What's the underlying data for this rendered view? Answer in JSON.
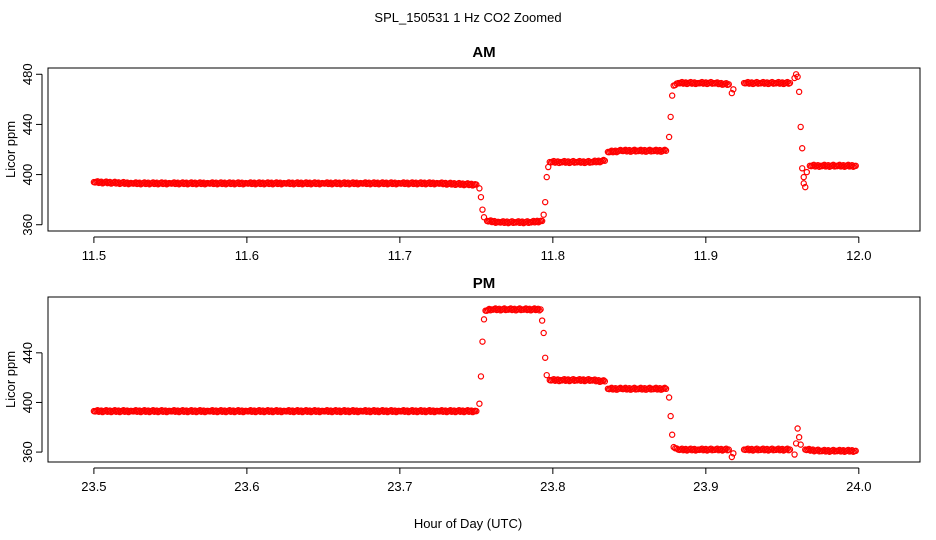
{
  "figure": {
    "title": "SPL_150531  1 Hz CO2 Zoomed",
    "xlabel": "Hour of Day (UTC)",
    "point_color": "#ff0000"
  },
  "chart_data": [
    {
      "type": "scatter",
      "title": "AM",
      "xlabel": "",
      "ylabel": "Licor ppm",
      "xlim": [
        11.47,
        12.04
      ],
      "ylim": [
        355,
        485
      ],
      "x_ticks": [
        11.5,
        11.6,
        11.7,
        11.8,
        11.9,
        12.0
      ],
      "x_tick_labels": [
        "11.5",
        "11.6",
        "11.7",
        "11.8",
        "11.9",
        "12.0"
      ],
      "y_ticks": [
        360,
        400,
        440,
        480
      ],
      "y_tick_labels": [
        "360",
        "400",
        "440",
        "480"
      ],
      "grid": false,
      "series": [
        {
          "color": "#ff0000",
          "points": [
            [
              11.5,
              394
            ],
            [
              11.525,
              393
            ],
            [
              11.55,
              393
            ],
            [
              11.575,
              393
            ],
            [
              11.6,
              393
            ],
            [
              11.625,
              393
            ],
            [
              11.65,
              393
            ],
            [
              11.675,
              393
            ],
            [
              11.7,
              393
            ],
            [
              11.725,
              393
            ],
            [
              11.75,
              392
            ],
            [
              11.752,
              389
            ],
            [
              11.753,
              382
            ],
            [
              11.754,
              372
            ],
            [
              11.755,
              366
            ],
            [
              11.757,
              363
            ],
            [
              11.765,
              362
            ],
            [
              11.775,
              362
            ],
            [
              11.785,
              362
            ],
            [
              11.793,
              363
            ],
            [
              11.794,
              368
            ],
            [
              11.795,
              378
            ],
            [
              11.796,
              398
            ],
            [
              11.797,
              406
            ],
            [
              11.798,
              410
            ],
            [
              11.805,
              410
            ],
            [
              11.815,
              410
            ],
            [
              11.825,
              410
            ],
            [
              11.834,
              411
            ],
            [
              11.836,
              418
            ],
            [
              11.845,
              419
            ],
            [
              11.855,
              419
            ],
            [
              11.865,
              419
            ],
            [
              11.874,
              419
            ],
            [
              11.876,
              430
            ],
            [
              11.877,
              446
            ],
            [
              11.878,
              463
            ],
            [
              11.879,
              471
            ],
            [
              11.882,
              473
            ],
            [
              11.895,
              473
            ],
            [
              11.905,
              473
            ],
            [
              11.915,
              472
            ],
            [
              11.917,
              465
            ],
            [
              11.918,
              468
            ],
            [
              11.925,
              473
            ],
            [
              11.935,
              473
            ],
            [
              11.945,
              473
            ],
            [
              11.955,
              473
            ],
            [
              11.958,
              477
            ],
            [
              11.959,
              480
            ],
            [
              11.96,
              478
            ],
            [
              11.961,
              466
            ],
            [
              11.962,
              438
            ],
            [
              11.963,
              421
            ],
            [
              11.963,
              405
            ],
            [
              11.964,
              398
            ],
            [
              11.964,
              393
            ],
            [
              11.965,
              390
            ],
            [
              11.966,
              402
            ],
            [
              11.968,
              407
            ],
            [
              11.975,
              407
            ],
            [
              11.985,
              407
            ],
            [
              11.998,
              407
            ]
          ]
        }
      ]
    },
    {
      "type": "scatter",
      "title": "PM",
      "xlabel": "",
      "ylabel": "Licor ppm",
      "xlim": [
        23.47,
        24.04
      ],
      "ylim": [
        352,
        485
      ],
      "x_ticks": [
        23.5,
        23.6,
        23.7,
        23.8,
        23.9,
        24.0
      ],
      "x_tick_labels": [
        "23.5",
        "23.6",
        "23.7",
        "23.8",
        "23.9",
        "24.0"
      ],
      "y_ticks": [
        360,
        400,
        440
      ],
      "y_tick_labels": [
        "360",
        "400",
        "440"
      ],
      "grid": false,
      "series": [
        {
          "color": "#ff0000",
          "points": [
            [
              23.5,
              393
            ],
            [
              23.525,
              393
            ],
            [
              23.55,
              393
            ],
            [
              23.575,
              393
            ],
            [
              23.6,
              393
            ],
            [
              23.625,
              393
            ],
            [
              23.65,
              393
            ],
            [
              23.675,
              393
            ],
            [
              23.7,
              393
            ],
            [
              23.725,
              393
            ],
            [
              23.75,
              393
            ],
            [
              23.752,
              399
            ],
            [
              23.753,
              421
            ],
            [
              23.754,
              449
            ],
            [
              23.755,
              467
            ],
            [
              23.756,
              474
            ],
            [
              23.76,
              475
            ],
            [
              23.77,
              475
            ],
            [
              23.78,
              475
            ],
            [
              23.792,
              475
            ],
            [
              23.793,
              466
            ],
            [
              23.794,
              456
            ],
            [
              23.795,
              436
            ],
            [
              23.796,
              422
            ],
            [
              23.798,
              418
            ],
            [
              23.805,
              418
            ],
            [
              23.815,
              418
            ],
            [
              23.825,
              418
            ],
            [
              23.834,
              417
            ],
            [
              23.836,
              411
            ],
            [
              23.845,
              411
            ],
            [
              23.855,
              411
            ],
            [
              23.865,
              411
            ],
            [
              23.874,
              411
            ],
            [
              23.876,
              404
            ],
            [
              23.877,
              389
            ],
            [
              23.878,
              374
            ],
            [
              23.879,
              364
            ],
            [
              23.882,
              362
            ],
            [
              23.895,
              362
            ],
            [
              23.905,
              362
            ],
            [
              23.915,
              362
            ],
            [
              23.917,
              356
            ],
            [
              23.918,
              359
            ],
            [
              23.925,
              362
            ],
            [
              23.935,
              362
            ],
            [
              23.945,
              362
            ],
            [
              23.955,
              362
            ],
            [
              23.958,
              358
            ],
            [
              23.959,
              367
            ],
            [
              23.96,
              379
            ],
            [
              23.961,
              372
            ],
            [
              23.962,
              366
            ],
            [
              23.965,
              362
            ],
            [
              23.975,
              361
            ],
            [
              23.985,
              361
            ],
            [
              23.998,
              361
            ]
          ]
        }
      ]
    }
  ]
}
